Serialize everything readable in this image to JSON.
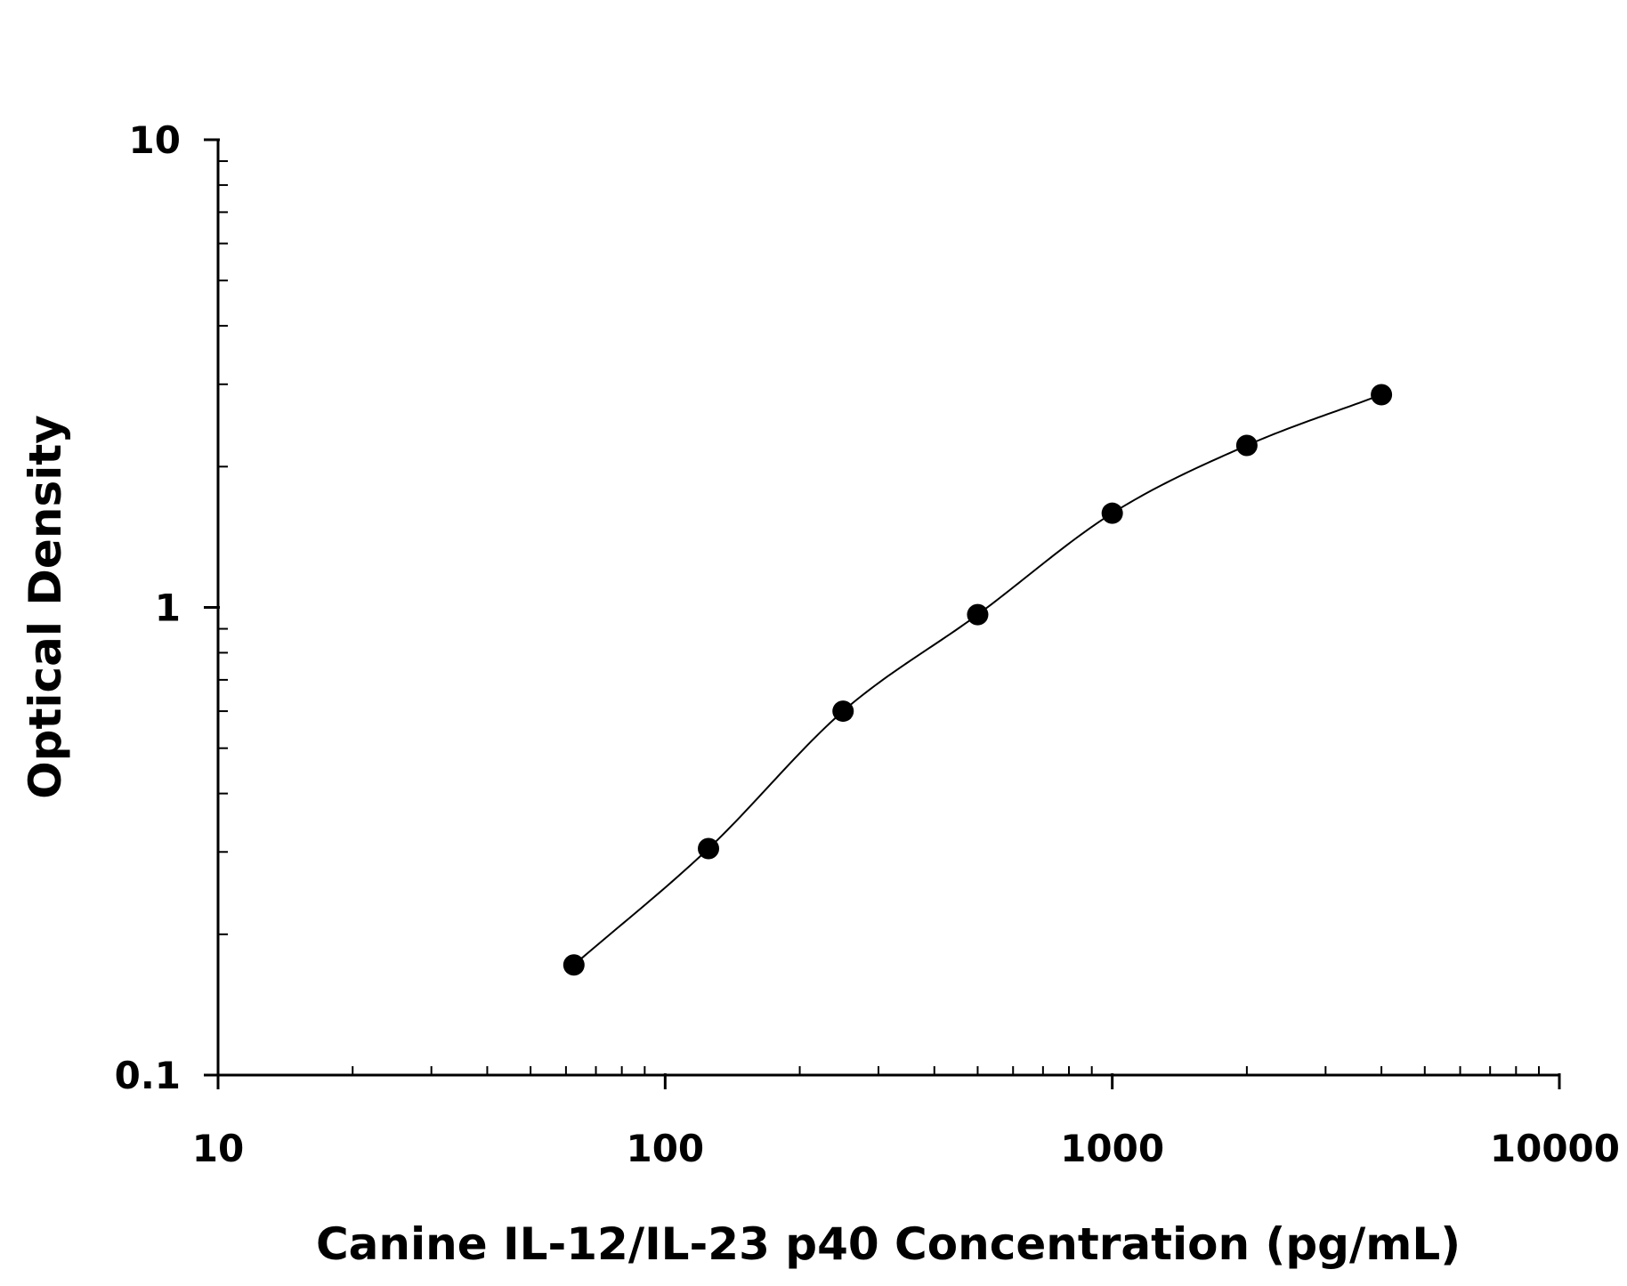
{
  "chart_data": {
    "type": "scatter",
    "xlabel": "Canine IL-12/IL-23 p40 Concentration (pg/mL)",
    "ylabel": "Optical Density",
    "xscale": "log",
    "yscale": "log",
    "xlim": [
      10,
      10000
    ],
    "ylim": [
      0.1,
      10
    ],
    "x_ticks": [
      {
        "value": 10,
        "label": "10"
      },
      {
        "value": 100,
        "label": "100"
      },
      {
        "value": 1000,
        "label": "1000"
      },
      {
        "value": 10000,
        "label": "10000"
      }
    ],
    "y_ticks": [
      {
        "value": 0.1,
        "label": "0.1"
      },
      {
        "value": 1,
        "label": "1"
      },
      {
        "value": 10,
        "label": "10"
      }
    ],
    "grid": false,
    "fit_line": true,
    "marker_color": "#000000",
    "line_color": "#000000",
    "series": [
      {
        "points": [
          {
            "x": 62.5,
            "y": 0.172
          },
          {
            "x": 125,
            "y": 0.305
          },
          {
            "x": 250,
            "y": 0.6
          },
          {
            "x": 500,
            "y": 0.965
          },
          {
            "x": 1000,
            "y": 1.59
          },
          {
            "x": 2000,
            "y": 2.22
          },
          {
            "x": 4000,
            "y": 2.85
          }
        ]
      }
    ]
  }
}
